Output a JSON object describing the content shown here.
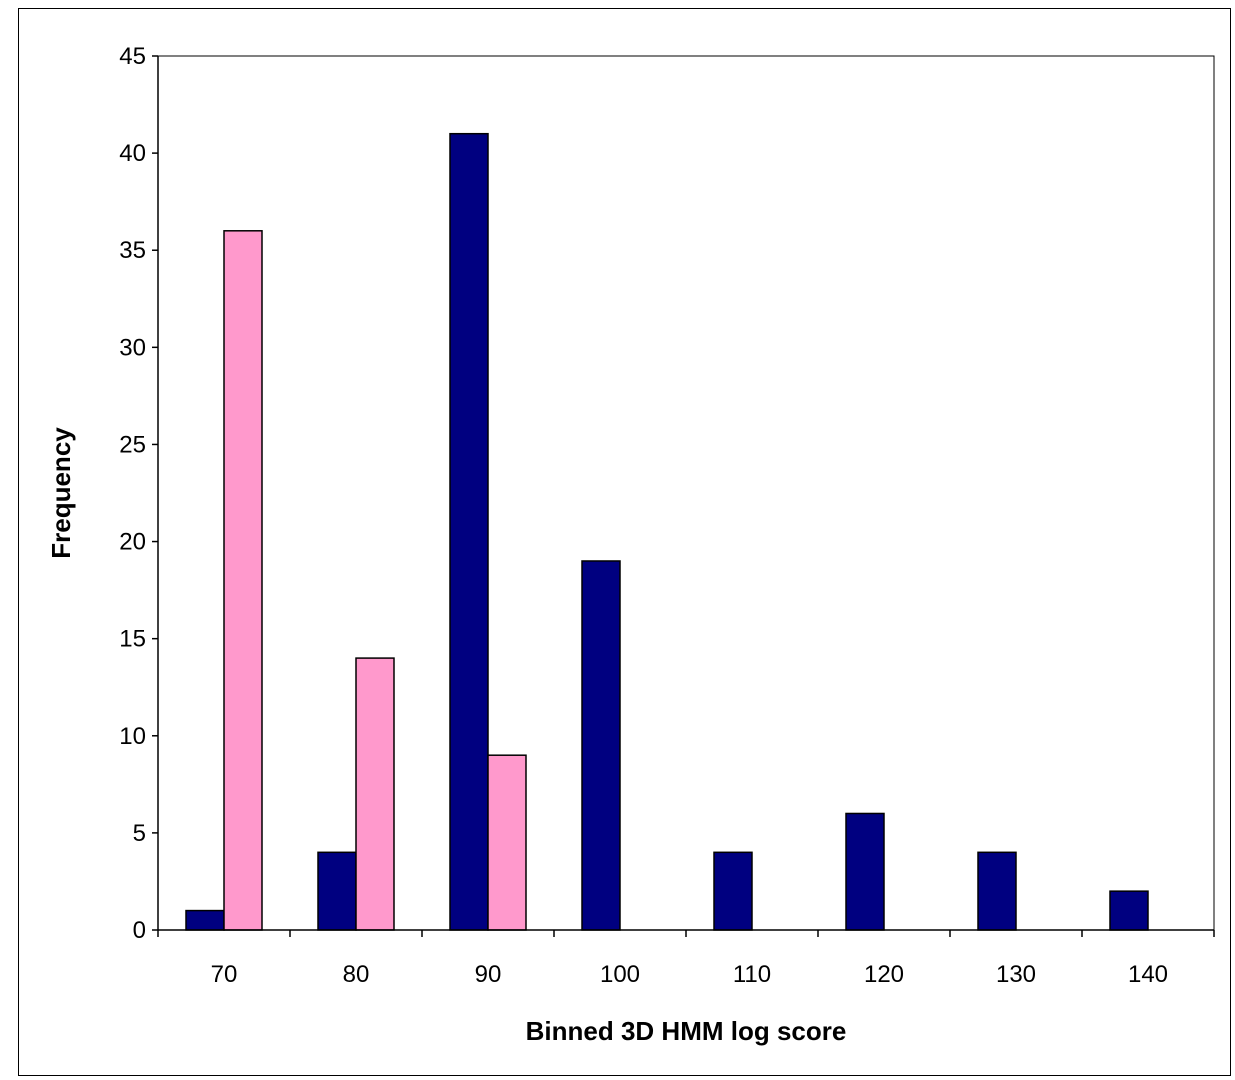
{
  "chart_data": {
    "type": "bar",
    "title": "",
    "xlabel": "Binned 3D HMM log score",
    "ylabel": "Frequency",
    "ylim": [
      0,
      45
    ],
    "yticks": [
      0,
      5,
      10,
      15,
      20,
      25,
      30,
      35,
      40,
      45
    ],
    "categories": [
      "70",
      "80",
      "90",
      "100",
      "110",
      "120",
      "130",
      "140"
    ],
    "grid": false,
    "legend": "none",
    "series": [
      {
        "color": "#000080",
        "values": [
          1,
          4,
          41,
          19,
          4,
          6,
          4,
          2
        ]
      },
      {
        "color": "#FF99CC",
        "values": [
          36,
          14,
          9,
          0,
          0,
          0,
          0,
          0
        ]
      }
    ]
  }
}
